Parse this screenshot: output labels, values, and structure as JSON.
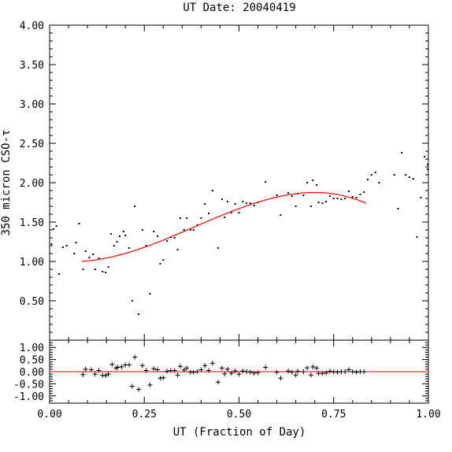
{
  "chart_data": {
    "type": "scatter",
    "title": "UT Date: 20040419",
    "xlabel": "UT (Fraction of Day)",
    "ylabel": "350 micron CSO-τ",
    "xlim": [
      0,
      1
    ],
    "ylim": [
      0,
      4
    ],
    "x_ticks": [
      "0.00",
      "0.25",
      "0.50",
      "0.75",
      "1.00"
    ],
    "y_ticks": [
      "0.50",
      "1.00",
      "1.50",
      "2.00",
      "2.50",
      "3.00",
      "3.50",
      "4.00"
    ],
    "grid": false,
    "fit_color": "#ff0000",
    "point_color": "#000000",
    "fit_range": [
      0.085,
      0.835
    ],
    "series": [
      {
        "marker": "dot",
        "points": [
          [
            0.005,
            1.22
          ],
          [
            0.01,
            1.41
          ],
          [
            0.018,
            1.45
          ],
          [
            0.025,
            0.84
          ],
          [
            0.035,
            1.18
          ],
          [
            0.045,
            1.2
          ],
          [
            0.065,
            1.1
          ],
          [
            0.07,
            1.24
          ],
          [
            0.078,
            1.48
          ],
          [
            0.088,
            0.9
          ],
          [
            0.095,
            1.13
          ],
          [
            0.105,
            1.05
          ],
          [
            0.115,
            1.09
          ],
          [
            0.12,
            0.9
          ],
          [
            0.13,
            1.04
          ],
          [
            0.14,
            0.87
          ],
          [
            0.148,
            0.86
          ],
          [
            0.155,
            0.93
          ],
          [
            0.162,
            1.35
          ],
          [
            0.17,
            1.2
          ],
          [
            0.178,
            1.25
          ],
          [
            0.185,
            1.32
          ],
          [
            0.195,
            1.38
          ],
          [
            0.2,
            1.33
          ],
          [
            0.21,
            1.17
          ],
          [
            0.218,
            0.5
          ],
          [
            0.225,
            1.7
          ],
          [
            0.235,
            0.33
          ],
          [
            0.245,
            1.4
          ],
          [
            0.255,
            1.2
          ],
          [
            0.265,
            0.59
          ],
          [
            0.275,
            1.38
          ],
          [
            0.285,
            1.32
          ],
          [
            0.292,
            0.97
          ],
          [
            0.3,
            1.02
          ],
          [
            0.31,
            1.26
          ],
          [
            0.32,
            1.31
          ],
          [
            0.33,
            1.3
          ],
          [
            0.338,
            1.15
          ],
          [
            0.345,
            1.55
          ],
          [
            0.355,
            1.4
          ],
          [
            0.362,
            1.55
          ],
          [
            0.372,
            1.4
          ],
          [
            0.38,
            1.4
          ],
          [
            0.39,
            1.46
          ],
          [
            0.4,
            1.55
          ],
          [
            0.41,
            1.73
          ],
          [
            0.42,
            1.61
          ],
          [
            0.43,
            1.9
          ],
          [
            0.445,
            1.17
          ],
          [
            0.455,
            1.79
          ],
          [
            0.462,
            1.56
          ],
          [
            0.47,
            1.76
          ],
          [
            0.48,
            1.62
          ],
          [
            0.49,
            1.73
          ],
          [
            0.5,
            1.62
          ],
          [
            0.51,
            1.76
          ],
          [
            0.52,
            1.74
          ],
          [
            0.53,
            1.74
          ],
          [
            0.54,
            1.71
          ],
          [
            0.55,
            1.75
          ],
          [
            0.57,
            2.01
          ],
          [
            0.6,
            1.84
          ],
          [
            0.61,
            1.59
          ],
          [
            0.63,
            1.87
          ],
          [
            0.64,
            1.83
          ],
          [
            0.65,
            1.7
          ],
          [
            0.655,
            1.86
          ],
          [
            0.67,
            1.84
          ],
          [
            0.68,
            2.0
          ],
          [
            0.69,
            1.7
          ],
          [
            0.695,
            2.03
          ],
          [
            0.705,
            1.97
          ],
          [
            0.71,
            1.75
          ],
          [
            0.72,
            1.74
          ],
          [
            0.73,
            1.76
          ],
          [
            0.74,
            1.83
          ],
          [
            0.75,
            1.8
          ],
          [
            0.76,
            1.8
          ],
          [
            0.77,
            1.79
          ],
          [
            0.78,
            1.8
          ],
          [
            0.79,
            1.89
          ],
          [
            0.8,
            1.82
          ],
          [
            0.81,
            1.81
          ],
          [
            0.82,
            1.85
          ],
          [
            0.83,
            1.88
          ],
          [
            0.84,
            2.04
          ],
          [
            0.85,
            2.1
          ],
          [
            0.86,
            2.13
          ],
          [
            0.87,
            2.0
          ],
          [
            0.91,
            2.1
          ],
          [
            0.92,
            1.67
          ],
          [
            0.93,
            2.38
          ],
          [
            0.94,
            2.1
          ],
          [
            0.95,
            2.07
          ],
          [
            0.96,
            2.05
          ],
          [
            0.97,
            1.31
          ],
          [
            0.98,
            1.81
          ],
          [
            0.99,
            2.33
          ],
          [
            1.0,
            2.17
          ],
          [
            1.003,
            2.23
          ]
        ]
      }
    ]
  },
  "residual_data": {
    "ylim": [
      -1.3,
      1.3
    ],
    "y_ticks": [
      "1.00",
      "0.50",
      "0.00",
      "-0.50",
      "-1.00"
    ],
    "marker": "plus",
    "points": [
      [
        0.088,
        -0.12
      ],
      [
        0.095,
        0.1
      ],
      [
        0.11,
        0.08
      ],
      [
        0.12,
        -0.1
      ],
      [
        0.13,
        0.05
      ],
      [
        0.14,
        -0.15
      ],
      [
        0.148,
        -0.16
      ],
      [
        0.155,
        -0.1
      ],
      [
        0.165,
        0.3
      ],
      [
        0.175,
        0.15
      ],
      [
        0.18,
        0.18
      ],
      [
        0.19,
        0.2
      ],
      [
        0.2,
        0.28
      ],
      [
        0.21,
        0.28
      ],
      [
        0.218,
        -0.6
      ],
      [
        0.225,
        0.6
      ],
      [
        0.235,
        -0.73
      ],
      [
        0.245,
        0.25
      ],
      [
        0.255,
        0.05
      ],
      [
        0.265,
        -0.55
      ],
      [
        0.275,
        0.12
      ],
      [
        0.285,
        0.08
      ],
      [
        0.292,
        -0.27
      ],
      [
        0.3,
        -0.25
      ],
      [
        0.31,
        0.02
      ],
      [
        0.32,
        0.05
      ],
      [
        0.33,
        0.05
      ],
      [
        0.338,
        -0.14
      ],
      [
        0.345,
        0.22
      ],
      [
        0.355,
        0.07
      ],
      [
        0.362,
        0.15
      ],
      [
        0.372,
        -0.02
      ],
      [
        0.38,
        -0.02
      ],
      [
        0.39,
        0.0
      ],
      [
        0.4,
        0.08
      ],
      [
        0.41,
        0.25
      ],
      [
        0.42,
        0.05
      ],
      [
        0.43,
        0.35
      ],
      [
        0.445,
        -0.43
      ],
      [
        0.455,
        0.15
      ],
      [
        0.462,
        -0.09
      ],
      [
        0.47,
        0.1
      ],
      [
        0.48,
        -0.06
      ],
      [
        0.49,
        0.03
      ],
      [
        0.5,
        -0.1
      ],
      [
        0.51,
        0.03
      ],
      [
        0.52,
        0.0
      ],
      [
        0.53,
        -0.02
      ],
      [
        0.54,
        -0.06
      ],
      [
        0.55,
        -0.04
      ],
      [
        0.57,
        0.18
      ],
      [
        0.6,
        -0.02
      ],
      [
        0.61,
        -0.27
      ],
      [
        0.63,
        0.03
      ],
      [
        0.64,
        -0.02
      ],
      [
        0.65,
        -0.14
      ],
      [
        0.655,
        0.02
      ],
      [
        0.67,
        0.0
      ],
      [
        0.68,
        0.16
      ],
      [
        0.69,
        -0.14
      ],
      [
        0.695,
        0.2
      ],
      [
        0.705,
        0.15
      ],
      [
        0.71,
        -0.07
      ],
      [
        0.72,
        -0.07
      ],
      [
        0.73,
        -0.05
      ],
      [
        0.74,
        0.02
      ],
      [
        0.75,
        -0.01
      ],
      [
        0.76,
        -0.02
      ],
      [
        0.77,
        0.0
      ],
      [
        0.78,
        0.0
      ],
      [
        0.79,
        0.08
      ],
      [
        0.8,
        0.0
      ],
      [
        0.81,
        -0.02
      ],
      [
        0.82,
        0.0
      ],
      [
        0.83,
        0.0
      ]
    ]
  }
}
